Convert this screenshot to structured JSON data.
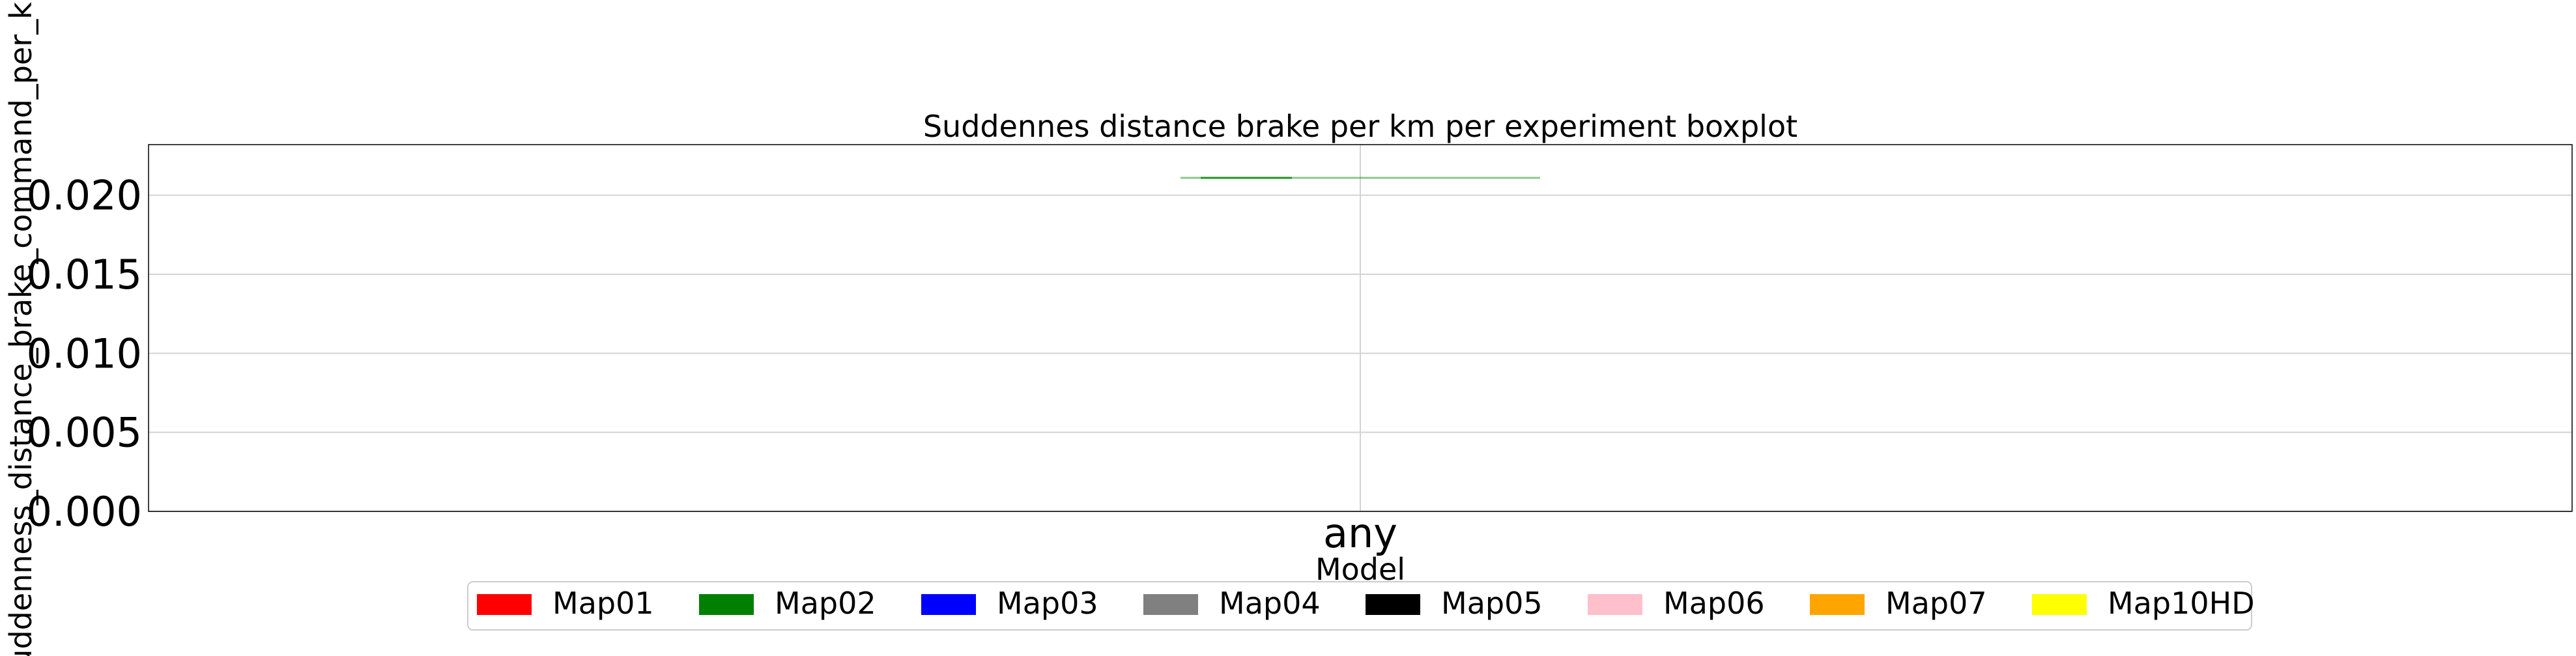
{
  "chart_data": {
    "type": "boxplot",
    "title": "Suddennes distance brake per km per experiment boxplot",
    "xlabel": "Model",
    "ylabel": "suddenness_distance_brake_command_per_km",
    "categories": [
      "any"
    ],
    "ylim": [
      0,
      0.0232
    ],
    "yticks": [
      0.0,
      0.005,
      0.01,
      0.015,
      0.02
    ],
    "ytick_labels": [
      "0.000",
      "0.005",
      "0.010",
      "0.015",
      "0.020"
    ],
    "grid": true,
    "legend_position": "bottom-center",
    "series": [
      {
        "name": "Map01",
        "color": "#ff0000",
        "values": []
      },
      {
        "name": "Map02",
        "color": "#008000",
        "values": [
          0.0211
        ]
      },
      {
        "name": "Map03",
        "color": "#0000ff",
        "values": []
      },
      {
        "name": "Map04",
        "color": "#808080",
        "values": []
      },
      {
        "name": "Map05",
        "color": "#000000",
        "values": []
      },
      {
        "name": "Map06",
        "color": "#ffc0cb",
        "values": []
      },
      {
        "name": "Map07",
        "color": "#ffa500",
        "values": []
      },
      {
        "name": "Map10HD",
        "color": "#ffff00",
        "values": []
      }
    ]
  }
}
